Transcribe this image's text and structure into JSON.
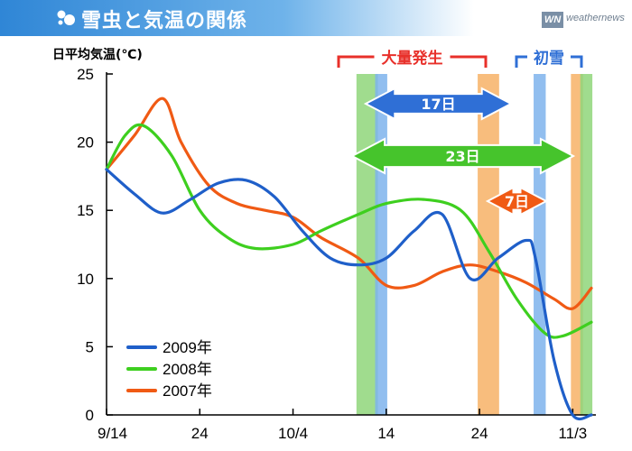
{
  "header": {
    "title": "雪虫と気温の関係",
    "icon": "snow-insect-icon",
    "brand_mark": "WN",
    "brand_text": "weathernews",
    "brand_color": "#7a8fa6"
  },
  "chart_data": {
    "type": "line",
    "title": "雪虫と気温の関係",
    "ylabel": "日平均気温(℃)",
    "xlabel": "",
    "ylim": [
      0,
      25
    ],
    "yticks": [
      0,
      5,
      10,
      15,
      20,
      25
    ],
    "xlim": [
      "9/14",
      "11/5"
    ],
    "xtick_labels": [
      "9/14",
      "24",
      "10/4",
      "14",
      "24",
      "11/3"
    ],
    "grid": false,
    "legend_position": "bottom-left",
    "series": [
      {
        "name": "2009年",
        "color": "#1f5fc9",
        "points": [
          [
            "9/14",
            18
          ],
          [
            "9/17",
            16.2
          ],
          [
            "9/20",
            14.8
          ],
          [
            "9/23",
            15.8
          ],
          [
            "9/26",
            17
          ],
          [
            "9/29",
            17.2
          ],
          [
            "10/2",
            16
          ],
          [
            "10/5",
            13.5
          ],
          [
            "10/8",
            11.5
          ],
          [
            "10/11",
            11
          ],
          [
            "10/14",
            11.5
          ],
          [
            "10/17",
            13.5
          ],
          [
            "10/20",
            14.7
          ],
          [
            "10/23",
            10
          ],
          [
            "10/26",
            11.5
          ],
          [
            "10/29",
            12.8
          ],
          [
            "10/30",
            11.5
          ],
          [
            "11/1",
            4
          ],
          [
            "11/3",
            0
          ],
          [
            "11/5",
            0
          ]
        ]
      },
      {
        "name": "2008年",
        "color": "#3ecf1f",
        "points": [
          [
            "9/14",
            18
          ],
          [
            "9/16",
            20.5
          ],
          [
            "9/18",
            21.2
          ],
          [
            "9/21",
            19
          ],
          [
            "9/24",
            15
          ],
          [
            "9/27",
            13
          ],
          [
            "9/30",
            12.2
          ],
          [
            "10/4",
            12.5
          ],
          [
            "10/7",
            13.5
          ],
          [
            "10/11",
            14.7
          ],
          [
            "10/14",
            15.5
          ],
          [
            "10/18",
            15.8
          ],
          [
            "10/22",
            15
          ],
          [
            "10/25",
            12
          ],
          [
            "10/28",
            8.5
          ],
          [
            "10/31",
            6
          ],
          [
            "11/2",
            5.8
          ],
          [
            "11/5",
            6.8
          ]
        ]
      },
      {
        "name": "2007年",
        "color": "#f05a14",
        "points": [
          [
            "9/14",
            18
          ],
          [
            "9/17",
            20.5
          ],
          [
            "9/20",
            23.2
          ],
          [
            "9/22",
            20
          ],
          [
            "9/25",
            16.8
          ],
          [
            "9/28",
            15.5
          ],
          [
            "10/1",
            15
          ],
          [
            "10/4",
            14.5
          ],
          [
            "10/7",
            13
          ],
          [
            "10/11",
            11.5
          ],
          [
            "10/14",
            9.5
          ],
          [
            "10/17",
            9.5
          ],
          [
            "10/20",
            10.5
          ],
          [
            "10/23",
            11
          ],
          [
            "10/26",
            10.5
          ],
          [
            "10/29",
            9.7
          ],
          [
            "11/1",
            8.5
          ],
          [
            "11/3",
            7.8
          ],
          [
            "11/5",
            9.3
          ]
        ]
      }
    ],
    "bands": [
      {
        "color": "#8fd67a",
        "from": "10/11",
        "to": "10/12"
      },
      {
        "color": "#7eb3ec",
        "from": "10/13",
        "to": "10/13"
      },
      {
        "color": "#f7b266",
        "from": "10/24",
        "to": "10/25"
      },
      {
        "color": "#7eb3ec",
        "from": "10/30",
        "to": "10/30"
      },
      {
        "color": "#f7b266",
        "from": "11/3",
        "to": "11/3"
      },
      {
        "color": "#8fd67a",
        "from": "11/4",
        "to": "11/4"
      }
    ],
    "annotations": {
      "outbreak_label": "大量発生",
      "outbreak_color": "#e8302a",
      "first_snow_label": "初雪",
      "first_snow_color": "#2f6fd6",
      "arrows": [
        {
          "label": "17日",
          "color": "#2f6fd6",
          "from": "10/13",
          "to": "10/30"
        },
        {
          "label": "23日",
          "color": "#46c42c",
          "from": "10/12",
          "to": "11/4"
        },
        {
          "label": "7日",
          "color": "#f05a14",
          "from": "10/26",
          "to": "11/2"
        }
      ]
    }
  }
}
